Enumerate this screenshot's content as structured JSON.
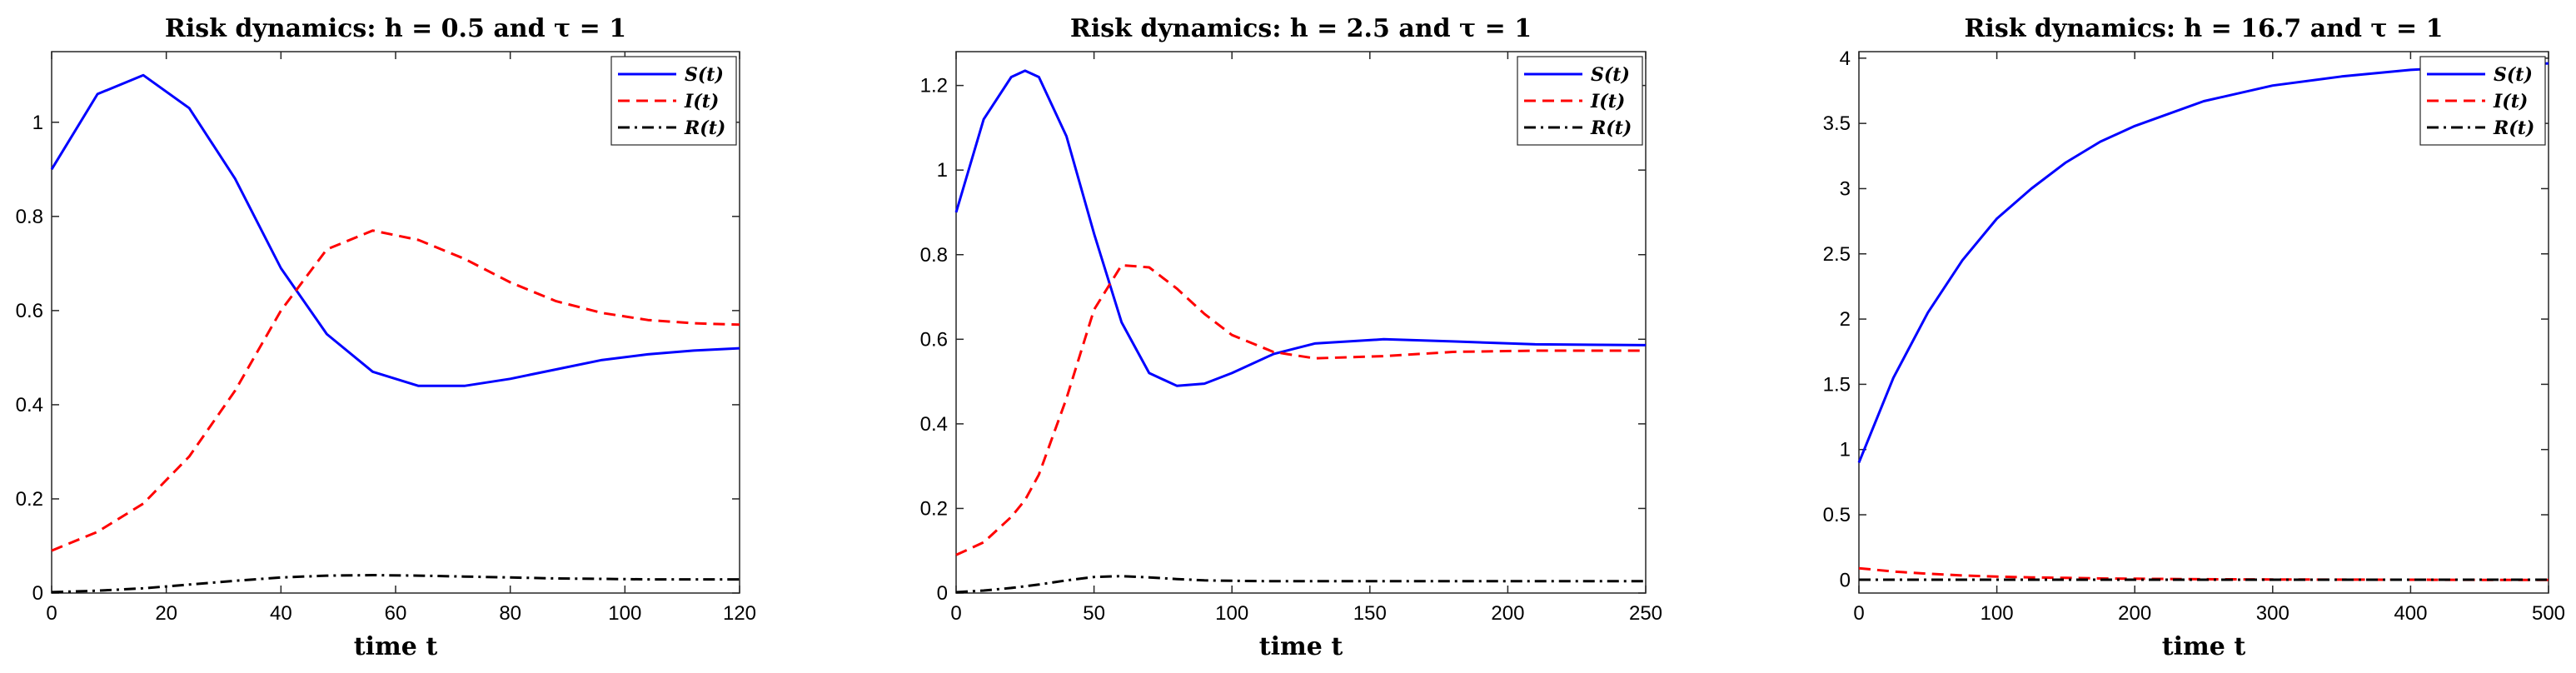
{
  "chart_data": [
    {
      "type": "line",
      "title": "Risk dynamics: h = 0.5 and τ = 1",
      "xlabel": "time t",
      "ylabel": "",
      "xlim": [
        0,
        120
      ],
      "ylim": [
        0,
        1.15
      ],
      "xticks": [
        0,
        20,
        40,
        60,
        80,
        100,
        120
      ],
      "yticks": [
        0,
        0.2,
        0.4,
        0.6,
        0.8,
        1
      ],
      "xtick_labels": [
        "0",
        "20",
        "40",
        "60",
        "80",
        "100",
        "120"
      ],
      "ytick_labels": [
        "0",
        "0.2",
        "0.4",
        "0.6",
        "0.8",
        "1"
      ],
      "grid": false,
      "legend": "top-right",
      "x": [
        0,
        8,
        16,
        24,
        32,
        40,
        48,
        56,
        64,
        72,
        80,
        88,
        96,
        104,
        112,
        120
      ],
      "series": [
        {
          "name": "S(t)",
          "color": "#0000ff",
          "style": "solid",
          "values": [
            0.9,
            1.06,
            1.1,
            1.03,
            0.88,
            0.69,
            0.55,
            0.47,
            0.44,
            0.44,
            0.455,
            0.475,
            0.495,
            0.507,
            0.515,
            0.52
          ]
        },
        {
          "name": "I(t)",
          "color": "#ff0000",
          "style": "dashed",
          "values": [
            0.09,
            0.13,
            0.19,
            0.29,
            0.43,
            0.6,
            0.73,
            0.77,
            0.75,
            0.71,
            0.66,
            0.62,
            0.595,
            0.58,
            0.573,
            0.57
          ]
        },
        {
          "name": "R(t)",
          "color": "#000000",
          "style": "dashdot",
          "values": [
            0.002,
            0.005,
            0.01,
            0.018,
            0.026,
            0.033,
            0.037,
            0.038,
            0.037,
            0.035,
            0.033,
            0.031,
            0.03,
            0.029,
            0.029,
            0.029
          ]
        }
      ]
    },
    {
      "type": "line",
      "title": "Risk dynamics: h = 2.5 and τ = 1",
      "xlabel": "time t",
      "ylabel": "",
      "xlim": [
        0,
        250
      ],
      "ylim": [
        0,
        1.28
      ],
      "xticks": [
        0,
        50,
        100,
        150,
        200,
        250
      ],
      "yticks": [
        0,
        0.2,
        0.4,
        0.6,
        0.8,
        1,
        1.2
      ],
      "xtick_labels": [
        "0",
        "50",
        "100",
        "150",
        "200",
        "250"
      ],
      "ytick_labels": [
        "0",
        "0.2",
        "0.4",
        "0.6",
        "0.8",
        "1",
        "1.2"
      ],
      "grid": false,
      "legend": "top-right",
      "x": [
        0,
        10,
        20,
        25,
        30,
        40,
        50,
        60,
        70,
        80,
        90,
        100,
        115,
        130,
        155,
        180,
        210,
        250
      ],
      "series": [
        {
          "name": "S(t)",
          "color": "#0000ff",
          "style": "solid",
          "values": [
            0.9,
            1.12,
            1.22,
            1.235,
            1.22,
            1.08,
            0.85,
            0.64,
            0.52,
            0.49,
            0.495,
            0.52,
            0.565,
            0.59,
            0.6,
            0.595,
            0.588,
            0.586
          ]
        },
        {
          "name": "I(t)",
          "color": "#ff0000",
          "style": "dashed",
          "values": [
            0.09,
            0.12,
            0.18,
            0.22,
            0.28,
            0.46,
            0.67,
            0.775,
            0.77,
            0.72,
            0.66,
            0.61,
            0.57,
            0.555,
            0.56,
            0.57,
            0.573,
            0.573
          ]
        },
        {
          "name": "R(t)",
          "color": "#000000",
          "style": "dashdot",
          "values": [
            0.002,
            0.006,
            0.012,
            0.016,
            0.02,
            0.03,
            0.038,
            0.04,
            0.037,
            0.033,
            0.03,
            0.029,
            0.028,
            0.028,
            0.028,
            0.028,
            0.028,
            0.028
          ]
        }
      ]
    },
    {
      "type": "line",
      "title": "Risk dynamics: h = 16.7 and τ = 1",
      "xlabel": "time t",
      "ylabel": "",
      "xlim": [
        0,
        500
      ],
      "ylim": [
        -0.1,
        4.05
      ],
      "xticks": [
        0,
        100,
        200,
        300,
        400,
        500
      ],
      "yticks": [
        0,
        0.5,
        1,
        1.5,
        2,
        2.5,
        3,
        3.5,
        4
      ],
      "xtick_labels": [
        "0",
        "100",
        "200",
        "300",
        "400",
        "500"
      ],
      "ytick_labels": [
        "0",
        "0.5",
        "1",
        "1.5",
        "2",
        "2.5",
        "3",
        "3.5",
        "4"
      ],
      "grid": false,
      "legend": "top-right",
      "x": [
        0,
        25,
        50,
        75,
        100,
        125,
        150,
        175,
        200,
        250,
        300,
        350,
        400,
        450,
        500
      ],
      "series": [
        {
          "name": "S(t)",
          "color": "#0000ff",
          "style": "solid",
          "values": [
            0.9,
            1.55,
            2.05,
            2.45,
            2.77,
            3.0,
            3.2,
            3.36,
            3.48,
            3.67,
            3.79,
            3.86,
            3.91,
            3.94,
            3.96
          ]
        },
        {
          "name": "I(t)",
          "color": "#ff0000",
          "style": "dashed",
          "values": [
            0.09,
            0.065,
            0.048,
            0.035,
            0.026,
            0.02,
            0.016,
            0.012,
            0.01,
            0.006,
            0.004,
            0.003,
            0.002,
            0.001,
            0.001
          ]
        },
        {
          "name": "R(t)",
          "color": "#000000",
          "style": "dashdot",
          "values": [
            0.002,
            0.002,
            0.002,
            0.002,
            0.002,
            0.002,
            0.002,
            0.002,
            0.002,
            0.002,
            0.002,
            0.002,
            0.002,
            0.002,
            0.002
          ]
        }
      ]
    }
  ]
}
